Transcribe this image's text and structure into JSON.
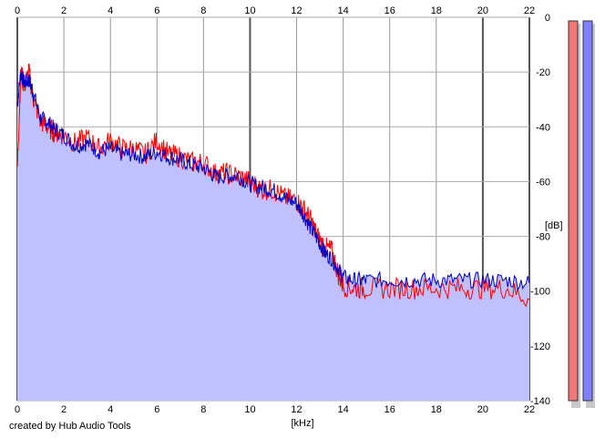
{
  "chart_data": {
    "type": "area",
    "xlabel": "[kHz]",
    "ylabel": "[dB]",
    "xlim": [
      0,
      22
    ],
    "ylim": [
      -140,
      0
    ],
    "x_ticks": [
      "0",
      "2",
      "4",
      "6",
      "8",
      "10",
      "12",
      "14",
      "16",
      "18",
      "20",
      "22"
    ],
    "y_ticks": [
      "0",
      "-20",
      "-40",
      "-60",
      "-80",
      "-100",
      "-120",
      "-140"
    ],
    "grid": true,
    "series": [
      {
        "color": "#ff0000",
        "x": [
          0,
          0.15,
          0.3,
          0.5,
          0.7,
          1,
          1.3,
          1.6,
          2,
          2.5,
          3,
          3.5,
          4,
          4.5,
          5,
          5.5,
          6,
          6.5,
          7,
          7.5,
          8,
          8.5,
          9,
          9.5,
          10,
          10.5,
          11,
          11.5,
          12,
          12.3,
          12.6,
          12.9,
          13.2,
          13.5,
          13.8,
          14,
          14.5,
          15,
          16,
          17,
          18,
          19,
          20,
          21,
          22
        ],
        "y": [
          -55,
          -20,
          -25,
          -20,
          -30,
          -38,
          -40,
          -42,
          -43,
          -46,
          -44,
          -48,
          -45,
          -48,
          -48,
          -50,
          -45,
          -50,
          -51,
          -53,
          -53,
          -57,
          -57,
          -58,
          -60,
          -63,
          -63,
          -66,
          -67,
          -70,
          -74,
          -80,
          -84,
          -85,
          -94,
          -98,
          -99,
          -99,
          -99,
          -99,
          -99,
          -99,
          -99,
          -99,
          -103
        ]
      },
      {
        "color": "#0000cc",
        "x": [
          0,
          0.15,
          0.3,
          0.5,
          0.7,
          1,
          1.3,
          1.6,
          2,
          2.5,
          3,
          3.5,
          4,
          4.5,
          5,
          5.5,
          6,
          6.5,
          7,
          7.5,
          8,
          8.5,
          9,
          9.5,
          10,
          10.5,
          11,
          11.5,
          12,
          12.3,
          12.6,
          12.9,
          13.2,
          13.5,
          13.8,
          14,
          14.5,
          15,
          16,
          17,
          18,
          19,
          20,
          21,
          22
        ],
        "y": [
          -32,
          -20,
          -24,
          -23,
          -28,
          -37,
          -38,
          -41,
          -43,
          -47,
          -46,
          -49,
          -48,
          -50,
          -50,
          -51,
          -49,
          -51,
          -52,
          -54,
          -55,
          -58,
          -58,
          -58,
          -61,
          -62,
          -63,
          -66,
          -68,
          -72,
          -77,
          -81,
          -86,
          -88,
          -92,
          -95,
          -96,
          -96,
          -96,
          -96,
          -96,
          -96,
          -96,
          -96,
          -97
        ]
      }
    ],
    "fill_color": "#c0c0ff",
    "meters": [
      {
        "color": "#f07878"
      },
      {
        "color": "#8080ff"
      }
    ]
  },
  "footer": {
    "credit": "created by Hub Audio Tools"
  }
}
